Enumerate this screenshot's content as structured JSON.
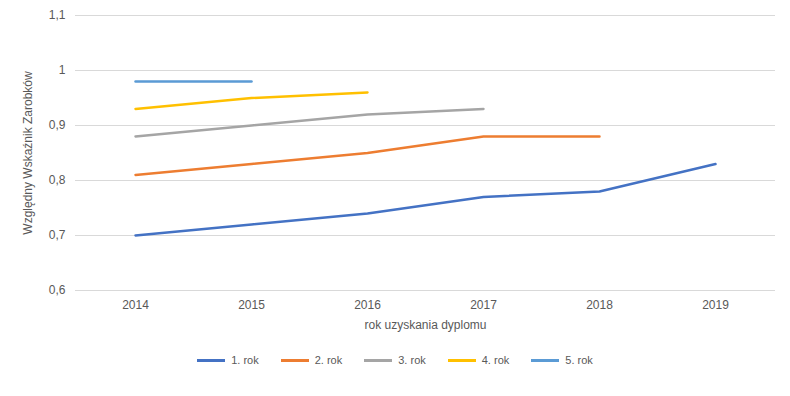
{
  "chart_data": {
    "type": "line",
    "x_label": "rok uzyskania dyplomu",
    "y_label": "Względny Wskaźnik Zarobków",
    "categories": [
      "2014",
      "2015",
      "2016",
      "2017",
      "2018",
      "2019"
    ],
    "series": [
      {
        "name": "1. rok",
        "color": "#4472c4",
        "values": [
          0.7,
          0.72,
          0.74,
          0.77,
          0.78,
          0.83
        ]
      },
      {
        "name": "2. rok",
        "color": "#ed7d31",
        "values": [
          0.81,
          0.83,
          0.85,
          0.88,
          0.88,
          null
        ]
      },
      {
        "name": "3. rok",
        "color": "#a5a5a5",
        "values": [
          0.88,
          0.9,
          0.92,
          0.93,
          null,
          null
        ]
      },
      {
        "name": "4. rok",
        "color": "#ffc000",
        "values": [
          0.93,
          0.95,
          0.96,
          null,
          null,
          null
        ]
      },
      {
        "name": "5. rok",
        "color": "#5b9bd5",
        "values": [
          0.98,
          0.98,
          null,
          null,
          null,
          null
        ]
      }
    ],
    "ylim": [
      0.6,
      1.1
    ],
    "yticks": [
      {
        "value": 0.6,
        "label": "0,6"
      },
      {
        "value": 0.7,
        "label": "0,7"
      },
      {
        "value": 0.8,
        "label": "0,8"
      },
      {
        "value": 0.9,
        "label": "0,9"
      },
      1,
      {
        "value": 1.1,
        "label": "1,1"
      }
    ],
    "grid": true,
    "legend": "bottom"
  }
}
